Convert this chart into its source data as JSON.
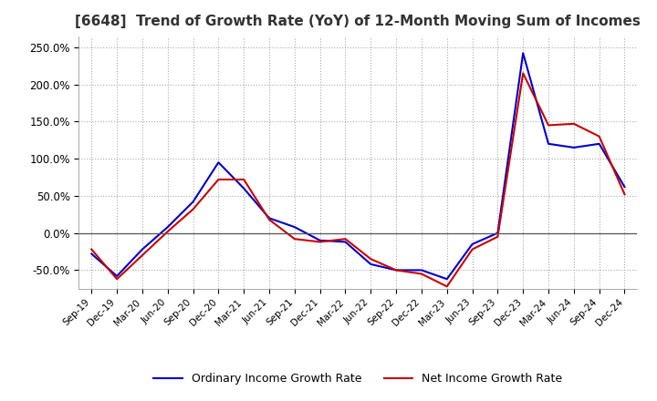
{
  "title": "[6648]  Trend of Growth Rate (YoY) of 12-Month Moving Sum of Incomes",
  "title_fontsize": 11,
  "ylim": [
    -75,
    265
  ],
  "yticks": [
    -50,
    0,
    50,
    100,
    150,
    200,
    250
  ],
  "background_color": "#ffffff",
  "grid_color": "#aaaaaa",
  "legend_labels": [
    "Ordinary Income Growth Rate",
    "Net Income Growth Rate"
  ],
  "legend_colors": [
    "#0000cc",
    "#cc0000"
  ],
  "x_labels": [
    "Sep-19",
    "Dec-19",
    "Mar-20",
    "Jun-20",
    "Sep-20",
    "Dec-20",
    "Mar-21",
    "Jun-21",
    "Sep-21",
    "Dec-21",
    "Mar-22",
    "Jun-22",
    "Sep-22",
    "Dec-22",
    "Mar-23",
    "Jun-23",
    "Sep-23",
    "Dec-23",
    "Mar-24",
    "Jun-24",
    "Sep-24",
    "Dec-24"
  ],
  "ordinary_income": [
    -28,
    -58,
    -22,
    8,
    42,
    95,
    60,
    20,
    8,
    -10,
    -12,
    -42,
    -50,
    -50,
    -62,
    -15,
    0,
    242,
    120,
    115,
    120,
    62
  ],
  "net_income": [
    -22,
    -62,
    -30,
    2,
    32,
    72,
    72,
    18,
    -8,
    -12,
    -8,
    -35,
    -50,
    -55,
    -72,
    -22,
    -5,
    215,
    145,
    147,
    130,
    52
  ]
}
